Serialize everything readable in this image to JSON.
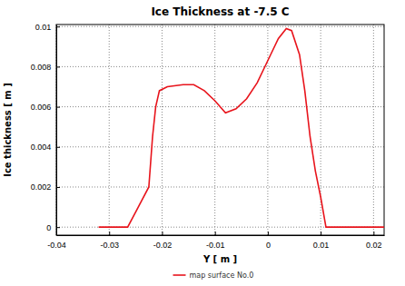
{
  "chart_data": {
    "type": "line",
    "title": "Ice Thickness at -7.5 C",
    "x_label": "Y [ m ]",
    "y_label": "Ice thickness [ m ]",
    "x": [
      -0.032,
      -0.0265,
      -0.0245,
      -0.0225,
      -0.0218,
      -0.0212,
      -0.0205,
      -0.019,
      -0.016,
      -0.014,
      -0.012,
      -0.01,
      -0.008,
      -0.006,
      -0.004,
      -0.002,
      0,
      0.002,
      0.0035,
      0.0045,
      0.006,
      0.007,
      0.008,
      0.009,
      0.01,
      0.011,
      0.022
    ],
    "series": [
      {
        "name": "map surface No.0",
        "color": "#e8141c",
        "values": [
          0,
          0,
          0.001,
          0.002,
          0.0045,
          0.006,
          0.0068,
          0.007,
          0.0071,
          0.0071,
          0.0068,
          0.0063,
          0.0057,
          0.0059,
          0.0064,
          0.0072,
          0.0083,
          0.0094,
          0.0099,
          0.0098,
          0.0086,
          0.0068,
          0.0045,
          0.0028,
          0.0015,
          0,
          0
        ],
        "line_style": "solid",
        "marker": "none"
      }
    ],
    "xlim": [
      -0.04,
      0.022
    ],
    "xticks": [
      -0.04,
      -0.03,
      -0.02,
      -0.01,
      0,
      0.01,
      0.02
    ],
    "ylim": [
      -0.0004,
      0.0101
    ],
    "yticks": [
      0,
      0.002,
      0.004,
      0.006,
      0.008,
      0.01
    ],
    "grid": true,
    "legend": "bottom"
  }
}
